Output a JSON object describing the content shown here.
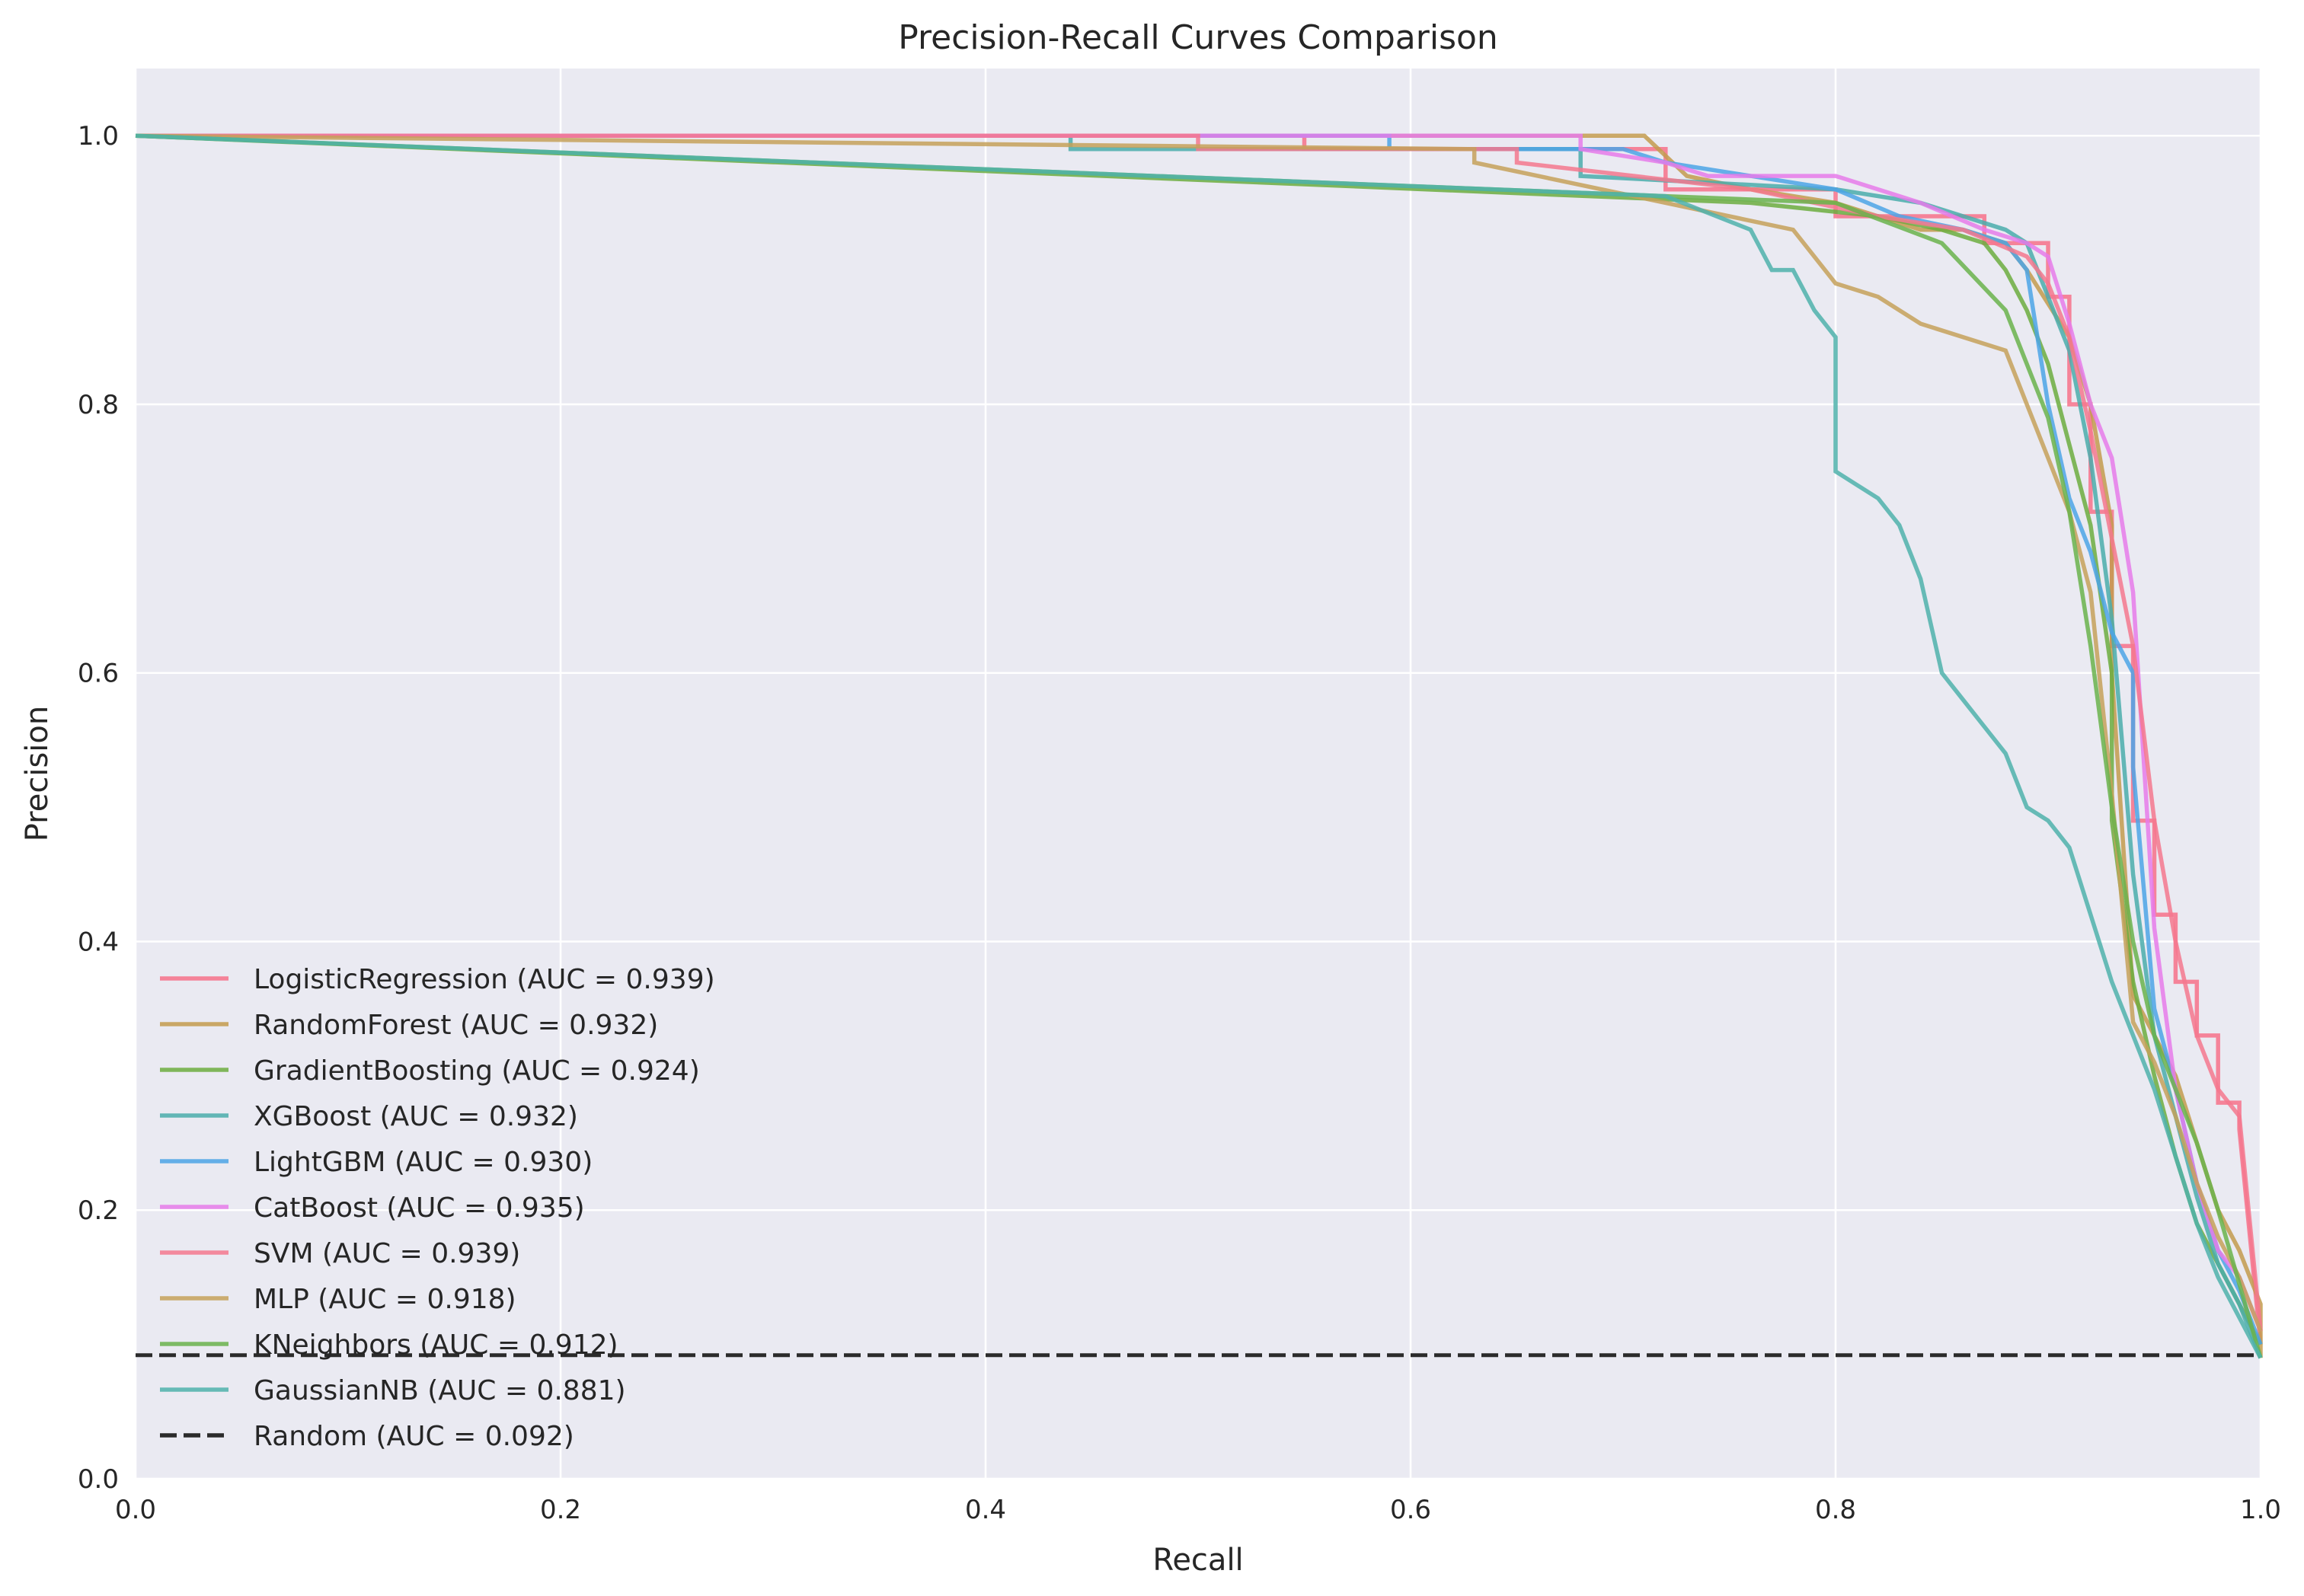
{
  "chart_data": {
    "type": "line",
    "title": "Precision-Recall Curves Comparison",
    "xlabel": "Recall",
    "ylabel": "Precision",
    "xlim": [
      0,
      1
    ],
    "ylim": [
      0,
      1.05
    ],
    "xticks": [
      0.0,
      0.2,
      0.4,
      0.6,
      0.8,
      1.0
    ],
    "yticks": [
      0.0,
      0.2,
      0.4,
      0.6,
      0.8,
      1.0
    ],
    "xtick_labels": [
      "0.0",
      "0.2",
      "0.4",
      "0.6",
      "0.8",
      "1.0"
    ],
    "ytick_labels": [
      "0.0",
      "0.2",
      "0.4",
      "0.6",
      "0.8",
      "1.0"
    ],
    "grid": true,
    "legend_position": "lower-left",
    "background": "#eaeaf2",
    "series": [
      {
        "name": "LogisticRegression (AUC = 0.939)",
        "color": "#f77189",
        "dash": false,
        "x": [
          0,
          0.55,
          0.55,
          0.72,
          0.72,
          0.8,
          0.8,
          0.87,
          0.87,
          0.9,
          0.9,
          0.91,
          0.91,
          0.92,
          0.92,
          0.93,
          0.93,
          0.94,
          0.94,
          0.95,
          0.95,
          0.96,
          0.96,
          0.97,
          0.97,
          0.98,
          0.98,
          0.99,
          0.99,
          1.0
        ],
        "y": [
          1.0,
          1.0,
          0.99,
          0.99,
          0.96,
          0.96,
          0.94,
          0.94,
          0.92,
          0.92,
          0.88,
          0.88,
          0.8,
          0.8,
          0.72,
          0.72,
          0.62,
          0.62,
          0.49,
          0.49,
          0.42,
          0.42,
          0.37,
          0.37,
          0.33,
          0.33,
          0.28,
          0.28,
          0.26,
          0.1
        ]
      },
      {
        "name": "RandomForest (AUC = 0.932)",
        "color": "#c39b4d",
        "dash": false,
        "x": [
          0,
          0.71,
          0.73,
          0.76,
          0.8,
          0.84,
          0.86,
          0.88,
          0.89,
          0.91,
          0.92,
          0.93,
          0.93,
          0.94,
          0.95,
          0.96,
          0.97,
          0.98,
          0.99,
          1.0,
          1.0
        ],
        "y": [
          1.0,
          1.0,
          0.97,
          0.96,
          0.95,
          0.93,
          0.93,
          0.92,
          0.9,
          0.85,
          0.8,
          0.71,
          0.6,
          0.36,
          0.33,
          0.3,
          0.25,
          0.2,
          0.17,
          0.13,
          0.09
        ]
      },
      {
        "name": "GradientBoosting (AUC = 0.924)",
        "color": "#6cad40",
        "dash": false,
        "x": [
          0,
          0.76,
          0.82,
          0.85,
          0.87,
          0.88,
          0.89,
          0.9,
          0.91,
          0.92,
          0.93,
          0.93,
          0.94,
          0.95,
          0.96,
          0.97,
          0.98,
          0.99,
          1.0
        ],
        "y": [
          1.0,
          0.95,
          0.94,
          0.93,
          0.92,
          0.9,
          0.87,
          0.83,
          0.77,
          0.71,
          0.6,
          0.49,
          0.37,
          0.3,
          0.24,
          0.19,
          0.16,
          0.13,
          0.1
        ]
      },
      {
        "name": "XGBoost (AUC = 0.932)",
        "color": "#4aadac",
        "dash": false,
        "x": [
          0,
          0.44,
          0.44,
          0.68,
          0.68,
          0.8,
          0.84,
          0.86,
          0.88,
          0.89,
          0.9,
          0.91,
          0.92,
          0.93,
          0.94,
          0.95,
          0.96,
          0.97,
          0.98,
          0.99,
          1.0
        ],
        "y": [
          1.0,
          1.0,
          0.99,
          0.99,
          0.97,
          0.96,
          0.95,
          0.94,
          0.93,
          0.92,
          0.88,
          0.84,
          0.76,
          0.64,
          0.45,
          0.33,
          0.27,
          0.21,
          0.16,
          0.13,
          0.09
        ]
      },
      {
        "name": "LightGBM (AUC = 0.930)",
        "color": "#4ca5e6",
        "dash": false,
        "x": [
          0,
          0.59,
          0.59,
          0.7,
          0.72,
          0.8,
          0.83,
          0.86,
          0.88,
          0.89,
          0.9,
          0.91,
          0.92,
          0.93,
          0.94,
          0.94,
          0.95,
          0.96,
          0.97,
          0.98,
          0.99,
          1.0
        ],
        "y": [
          1.0,
          1.0,
          0.99,
          0.99,
          0.98,
          0.96,
          0.94,
          0.93,
          0.92,
          0.9,
          0.8,
          0.73,
          0.69,
          0.63,
          0.6,
          0.53,
          0.35,
          0.29,
          0.22,
          0.17,
          0.14,
          0.1
        ]
      },
      {
        "name": "CatBoost (AUC = 0.935)",
        "color": "#e67bea",
        "dash": false,
        "x": [
          0,
          0.68,
          0.68,
          0.72,
          0.74,
          0.8,
          0.84,
          0.87,
          0.89,
          0.9,
          0.91,
          0.92,
          0.93,
          0.94,
          0.95,
          0.96,
          0.97,
          0.98,
          0.99,
          1.0
        ],
        "y": [
          1.0,
          1.0,
          0.99,
          0.98,
          0.97,
          0.97,
          0.95,
          0.93,
          0.92,
          0.91,
          0.86,
          0.8,
          0.76,
          0.66,
          0.41,
          0.29,
          0.22,
          0.17,
          0.15,
          0.11
        ]
      },
      {
        "name": "SVM (AUC = 0.939)",
        "color": "#f5788e",
        "dash": false,
        "x": [
          0,
          0.5,
          0.5,
          0.65,
          0.65,
          0.76,
          0.82,
          0.86,
          0.89,
          0.9,
          0.91,
          0.92,
          0.93,
          0.94,
          0.95,
          0.96,
          0.97,
          0.98,
          0.99,
          1.0
        ],
        "y": [
          1.0,
          1.0,
          0.99,
          0.99,
          0.98,
          0.96,
          0.94,
          0.93,
          0.91,
          0.89,
          0.85,
          0.78,
          0.7,
          0.62,
          0.49,
          0.4,
          0.33,
          0.29,
          0.27,
          0.11
        ]
      },
      {
        "name": "MLP (AUC = 0.918)",
        "color": "#c6a15a",
        "dash": false,
        "x": [
          0,
          0.63,
          0.63,
          0.75,
          0.78,
          0.8,
          0.82,
          0.84,
          0.86,
          0.88,
          0.89,
          0.9,
          0.91,
          0.92,
          0.93,
          0.94,
          0.95,
          0.96,
          0.97,
          0.98,
          0.99,
          1.0
        ],
        "y": [
          1.0,
          0.99,
          0.98,
          0.94,
          0.93,
          0.89,
          0.88,
          0.86,
          0.85,
          0.84,
          0.8,
          0.76,
          0.72,
          0.66,
          0.51,
          0.34,
          0.31,
          0.27,
          0.22,
          0.18,
          0.15,
          0.11
        ]
      },
      {
        "name": "KNeighbors (AUC = 0.912)",
        "color": "#6ab34c",
        "dash": false,
        "x": [
          0,
          0.72,
          0.8,
          0.85,
          0.88,
          0.9,
          0.91,
          0.92,
          0.93,
          0.94,
          0.95,
          0.96,
          0.97,
          0.98,
          1.0
        ],
        "y": [
          1.0,
          0.955,
          0.95,
          0.92,
          0.87,
          0.79,
          0.72,
          0.62,
          0.5,
          0.4,
          0.33,
          0.29,
          0.25,
          0.2,
          0.09
        ]
      },
      {
        "name": "GaussianNB (AUC = 0.881)",
        "color": "#4fb2ab",
        "dash": false,
        "x": [
          0,
          0.72,
          0.76,
          0.77,
          0.78,
          0.79,
          0.8,
          0.8,
          0.81,
          0.82,
          0.83,
          0.84,
          0.85,
          0.86,
          0.87,
          0.88,
          0.89,
          0.9,
          0.91,
          0.92,
          0.93,
          0.94,
          0.95,
          0.96,
          0.97,
          0.98,
          0.99,
          1.0
        ],
        "y": [
          1.0,
          0.955,
          0.93,
          0.9,
          0.9,
          0.87,
          0.85,
          0.75,
          0.74,
          0.73,
          0.71,
          0.67,
          0.6,
          0.58,
          0.56,
          0.54,
          0.5,
          0.49,
          0.47,
          0.42,
          0.37,
          0.33,
          0.29,
          0.24,
          0.19,
          0.15,
          0.12,
          0.09
        ]
      },
      {
        "name": "Random (AUC = 0.092)",
        "color": "#2b2b2b",
        "dash": true,
        "x": [
          0,
          1
        ],
        "y": [
          0.092,
          0.092
        ]
      }
    ]
  }
}
